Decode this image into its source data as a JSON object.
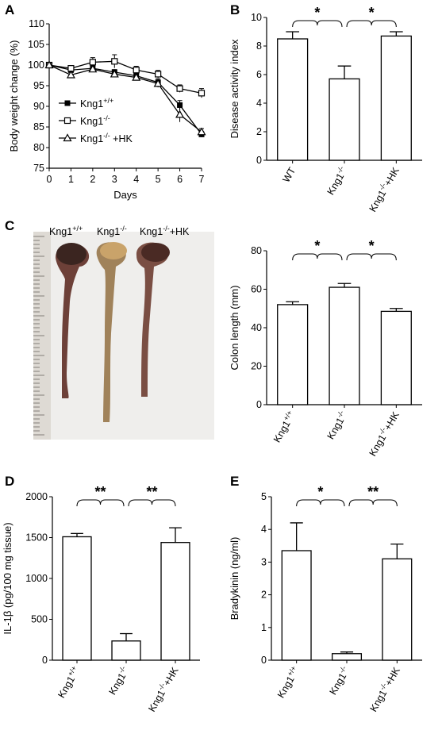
{
  "panels": [
    {
      "id": "A",
      "letter": "A"
    },
    {
      "id": "B",
      "letter": "B"
    },
    {
      "id": "C",
      "letter": "C"
    },
    {
      "id": "D",
      "letter": "D"
    },
    {
      "id": "E",
      "letter": "E"
    }
  ],
  "photo": {
    "labels": [
      {
        "base": "Kng1",
        "sup": "+/+",
        "suffix": ""
      },
      {
        "base": "Kng1",
        "sup": "-/-",
        "suffix": ""
      },
      {
        "base": "Kng1",
        "sup": "-/-",
        "suffix": "+HK"
      }
    ],
    "colors": {
      "bg": "#efeeec",
      "ruler": "#dedad4",
      "tissue_dark": "#3b2520",
      "tissue_mid": "#7a4e43",
      "tissue_light": "#d9b47a"
    }
  },
  "chart_data": [
    {
      "panel": "A",
      "type": "line",
      "xlabel": "Days",
      "ylabel": "Body weight change (%)",
      "x": [
        0,
        1,
        2,
        3,
        4,
        5,
        6,
        7
      ],
      "xlim": [
        0,
        7
      ],
      "ylim": [
        75,
        110
      ],
      "yticks": [
        75,
        80,
        85,
        90,
        95,
        100,
        105,
        110
      ],
      "xticks": [
        0,
        1,
        2,
        3,
        4,
        5,
        6,
        7
      ],
      "series": [
        {
          "base": "Kng1",
          "sup": "+/+",
          "suffix": "",
          "marker": "square-filled",
          "values": [
            100,
            98.8,
            99.2,
            98.3,
            97.4,
            95.8,
            90.3,
            83.2
          ],
          "errors": [
            0.4,
            0.6,
            0.7,
            0.6,
            0.7,
            0.9,
            1.1,
            0.7
          ]
        },
        {
          "base": "Kng1",
          "sup": "-/-",
          "suffix": "",
          "marker": "square-open",
          "values": [
            100,
            99.2,
            100.7,
            100.9,
            98.8,
            97.8,
            94.3,
            93.2
          ],
          "errors": [
            0.4,
            0.7,
            1.1,
            1.6,
            0.9,
            0.9,
            0.9,
            1.1
          ]
        },
        {
          "base": "Kng1",
          "sup": "-/-",
          "suffix": " +HK",
          "marker": "triangle-open",
          "values": [
            100,
            97.6,
            99.0,
            97.8,
            97.0,
            95.5,
            88.0,
            83.8
          ],
          "errors": [
            0.4,
            0.6,
            0.7,
            0.6,
            0.7,
            0.9,
            1.8,
            0.8
          ]
        }
      ]
    },
    {
      "panel": "B",
      "type": "bar",
      "ylabel": "Disease activity index",
      "categories": [
        {
          "base": "WT",
          "sup": "",
          "suffix": ""
        },
        {
          "base": "Kng1",
          "sup": "-/-",
          "suffix": ""
        },
        {
          "base": "Kng1",
          "sup": "-/-",
          "suffix": "+HK"
        }
      ],
      "values": [
        8.5,
        5.7,
        8.7
      ],
      "errors": [
        0.5,
        0.9,
        0.3
      ],
      "ylim": [
        0,
        10
      ],
      "yticks": [
        0,
        2,
        4,
        6,
        8,
        10
      ],
      "significance": [
        {
          "from": 0,
          "to": 1,
          "label": "*"
        },
        {
          "from": 1,
          "to": 2,
          "label": "*"
        }
      ]
    },
    {
      "panel": "C",
      "type": "bar",
      "ylabel": "Colon length (mm)",
      "categories": [
        {
          "base": "Kng1",
          "sup": "+/+",
          "suffix": ""
        },
        {
          "base": "Kng1",
          "sup": "-/-",
          "suffix": ""
        },
        {
          "base": "Kng1",
          "sup": "-/-",
          "suffix": "+HK"
        }
      ],
      "values": [
        52,
        61,
        48.5
      ],
      "errors": [
        1.5,
        2.0,
        1.5
      ],
      "ylim": [
        0,
        80
      ],
      "yticks": [
        0,
        20,
        40,
        60,
        80
      ],
      "significance": [
        {
          "from": 0,
          "to": 1,
          "label": "*"
        },
        {
          "from": 1,
          "to": 2,
          "label": "*"
        }
      ]
    },
    {
      "panel": "D",
      "type": "bar",
      "ylabel": "IL-1β (pg/100 mg tissue)",
      "categories": [
        {
          "base": "Kng1",
          "sup": "+/+",
          "suffix": ""
        },
        {
          "base": "Kng1",
          "sup": "-/-",
          "suffix": ""
        },
        {
          "base": "Kng1",
          "sup": "-/-",
          "suffix": "+HK"
        }
      ],
      "values": [
        1510,
        235,
        1440
      ],
      "errors": [
        40,
        90,
        180
      ],
      "ylim": [
        0,
        2000
      ],
      "yticks": [
        0,
        500,
        1000,
        1500,
        2000
      ],
      "significance": [
        {
          "from": 0,
          "to": 1,
          "label": "**"
        },
        {
          "from": 1,
          "to": 2,
          "label": "**"
        }
      ]
    },
    {
      "panel": "E",
      "type": "bar",
      "ylabel": "Bradykinin (ng/ml)",
      "categories": [
        {
          "base": "Kng1",
          "sup": "+/+",
          "suffix": ""
        },
        {
          "base": "Kng1",
          "sup": "-/-",
          "suffix": ""
        },
        {
          "base": "Kng1",
          "sup": "-/-",
          "suffix": "+HK"
        }
      ],
      "values": [
        3.35,
        0.2,
        3.1
      ],
      "errors": [
        0.85,
        0.05,
        0.45
      ],
      "ylim": [
        0,
        5
      ],
      "yticks": [
        0,
        1,
        2,
        3,
        4,
        5
      ],
      "significance": [
        {
          "from": 0,
          "to": 1,
          "label": "*"
        },
        {
          "from": 1,
          "to": 2,
          "label": "**"
        }
      ]
    }
  ]
}
